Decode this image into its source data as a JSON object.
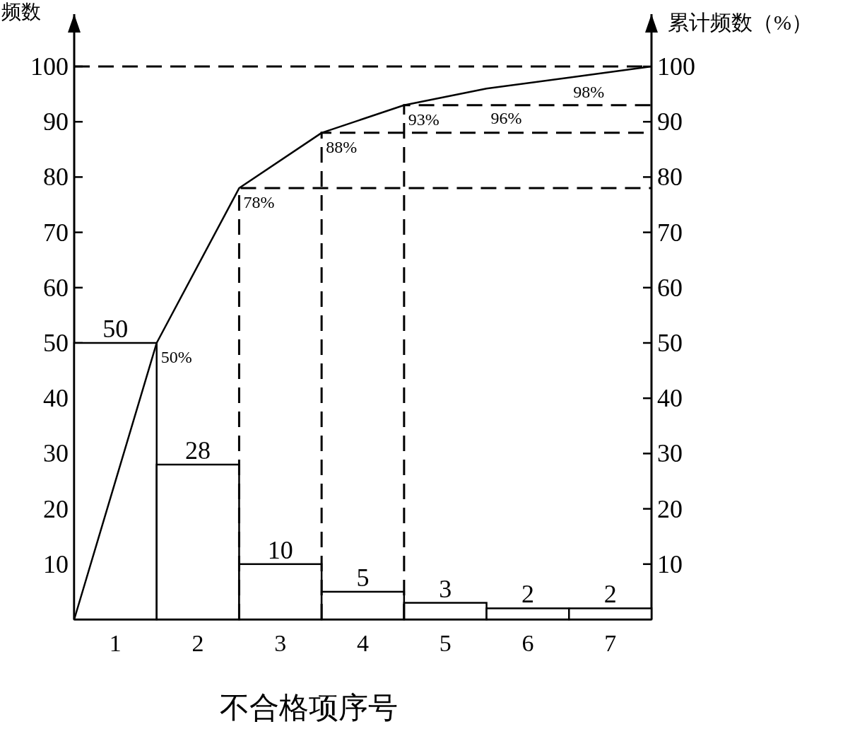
{
  "chart_data": {
    "type": "bar",
    "xlabel": "不合格项序号",
    "ylabel": "频数",
    "y2label": "累计频数（%）",
    "xlim": [
      0.5,
      7.5
    ],
    "xticks": [
      1,
      2,
      3,
      4,
      5,
      6,
      7
    ],
    "ylim": [
      0,
      100
    ],
    "yticks": [
      10,
      20,
      30,
      40,
      50,
      60,
      70,
      80,
      90,
      100
    ],
    "y2lim": [
      0,
      100
    ],
    "y2ticks": [
      10,
      20,
      30,
      40,
      50,
      60,
      70,
      80,
      90,
      100
    ],
    "grid": false,
    "marker": "none",
    "series": [
      {
        "color": "#ffffff",
        "x": [
          1,
          2,
          3,
          4,
          5,
          6,
          7
        ],
        "values": [
          50,
          28,
          10,
          5,
          3,
          2,
          2
        ],
        "value_labels": [
          "50",
          "28",
          "10",
          "5",
          "3",
          "2",
          "2"
        ]
      },
      {
        "type": "line",
        "color": "#000000",
        "x": [
          0.5,
          1.5,
          2.5,
          3.5,
          4.5,
          5.5,
          6.5,
          7.5
        ],
        "values": [
          0,
          50,
          78,
          88,
          93,
          96,
          98,
          100
        ],
        "value_labels": [
          null,
          "50%",
          "78%",
          "88%",
          "93%",
          "96%",
          "98%",
          null
        ]
      }
    ],
    "ref_lines": [
      {
        "axis": "y2",
        "value": 100,
        "line_style": "dashed"
      },
      {
        "axis": "y2",
        "value": 93,
        "line_style": "dashed"
      },
      {
        "axis": "y2",
        "value": 88,
        "line_style": "dashed"
      },
      {
        "axis": "y2",
        "value": 78,
        "line_style": "dashed"
      }
    ]
  }
}
